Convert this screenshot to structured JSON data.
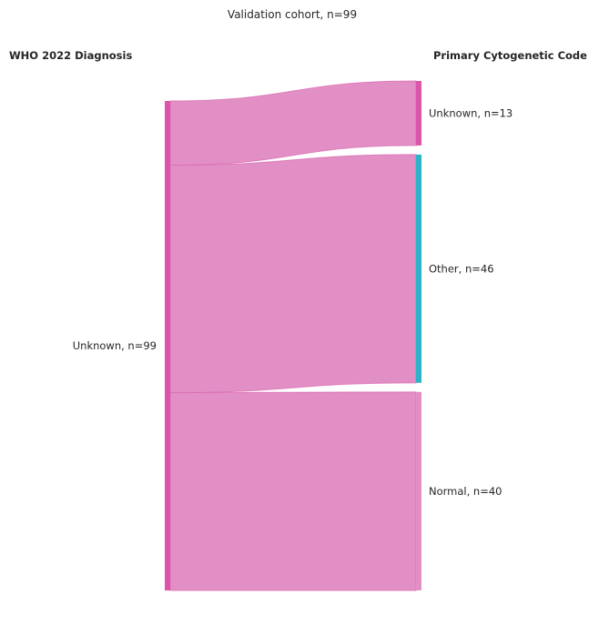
{
  "chart_data": {
    "type": "sankey",
    "title": "Validation cohort, n=99",
    "left_header": "WHO 2022 Diagnosis",
    "right_header": "Primary Cytogenetic Code",
    "left_nodes": [
      {
        "id": "unknown_left",
        "label": "Unknown, n=99",
        "value": 99,
        "color": "#dd55aa"
      }
    ],
    "right_nodes": [
      {
        "id": "unknown_right",
        "label": "Unknown, n=13",
        "value": 13,
        "color": "#dd55aa"
      },
      {
        "id": "other",
        "label": "Other, n=46",
        "value": 46,
        "color": "#2bb3c8"
      },
      {
        "id": "normal",
        "label": "Normal, n=40",
        "value": 40,
        "color": "#e38fc6"
      }
    ],
    "links": [
      {
        "source": "unknown_left",
        "target": "unknown_right",
        "value": 13
      },
      {
        "source": "unknown_left",
        "target": "other",
        "value": 46
      },
      {
        "source": "unknown_left",
        "target": "normal",
        "value": 40
      }
    ],
    "link_color": "#e089c2",
    "link_stroke": "#dc6db3"
  }
}
